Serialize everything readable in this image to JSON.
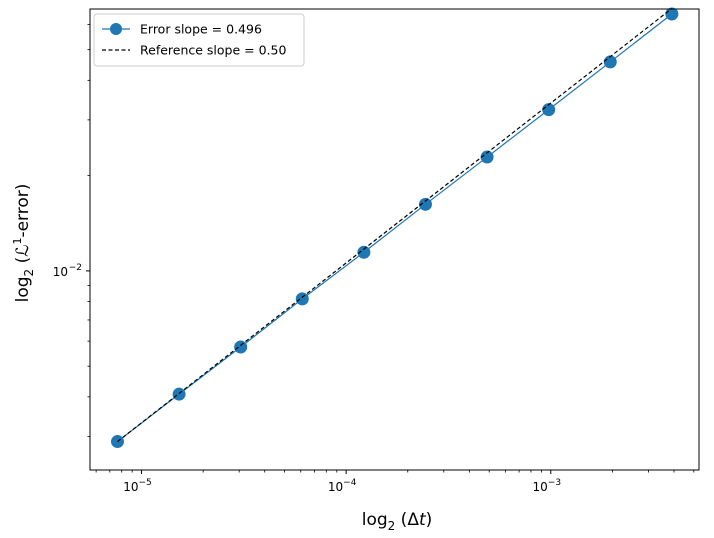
{
  "chart_data": {
    "type": "line",
    "xscale": "log2",
    "yscale": "log",
    "xlabel": "log₂(Δt)",
    "ylabel": "log₂(ℒ¹-error)",
    "xlim": [
      5.6e-06,
      0.0053
    ],
    "ylim": [
      0.00235,
      0.0672
    ],
    "grid": false,
    "legend_position": "top-left",
    "series": [
      {
        "name": "Error slope = 0.496",
        "style": "solid-line-circle-markers",
        "color": "#1f77b4",
        "x": [
          7.63e-06,
          1.526e-05,
          3.052e-05,
          6.104e-05,
          0.0001221,
          0.0002441,
          0.0004883,
          0.0009766,
          0.001953,
          0.003906
        ],
        "y": [
          0.00289,
          0.00408,
          0.00575,
          0.00816,
          0.01145,
          0.01623,
          0.02289,
          0.03232,
          0.04573,
          0.0648
        ]
      },
      {
        "name": "Reference slope = 0.50",
        "style": "dashed-line",
        "color": "#000000",
        "x": [
          7.63e-06,
          0.003906
        ],
        "y": [
          0.00289,
          0.06745
        ]
      }
    ],
    "x_ticks": [
      {
        "value": 1e-05,
        "base": "10",
        "exp": "−5"
      },
      {
        "value": 0.0001,
        "base": "10",
        "exp": "−4"
      },
      {
        "value": 0.001,
        "base": "10",
        "exp": "−3"
      }
    ],
    "y_ticks": [
      {
        "value": 0.01,
        "base": "10",
        "exp": "−2"
      }
    ],
    "x_minor_ticks": [
      6e-06,
      7e-06,
      8e-06,
      9e-06,
      2e-05,
      3e-05,
      4e-05,
      5e-05,
      6e-05,
      7e-05,
      8e-05,
      9e-05,
      0.0002,
      0.0003,
      0.0004,
      0.0005,
      0.0006,
      0.0007,
      0.0008,
      0.0009,
      0.002,
      0.003,
      0.004,
      0.005
    ],
    "y_minor_ticks": [
      0.003,
      0.004,
      0.005,
      0.006,
      0.007,
      0.008,
      0.009,
      0.02,
      0.03,
      0.04,
      0.05,
      0.06
    ]
  }
}
